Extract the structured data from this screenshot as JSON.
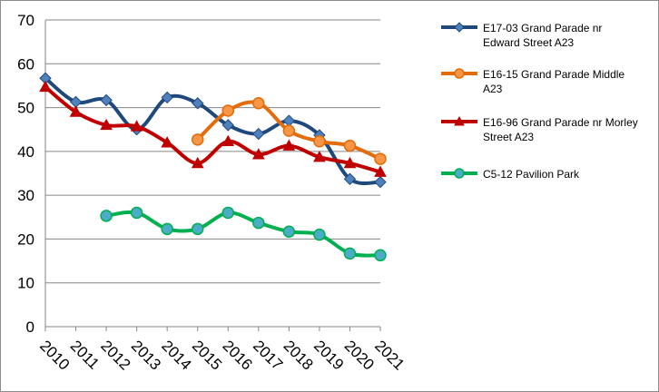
{
  "chart_data": {
    "type": "line",
    "title": "",
    "xlabel": "",
    "ylabel": "",
    "categories": [
      "2010",
      "2011",
      "2012",
      "2013",
      "2014",
      "2015",
      "2016",
      "2017",
      "2018",
      "2019",
      "2020",
      "2021"
    ],
    "ylim": [
      0,
      70
    ],
    "yticks": [
      0,
      10,
      20,
      30,
      40,
      50,
      60,
      70
    ],
    "grid": "horizontal",
    "legend_position": "right",
    "series": [
      {
        "name": "E17-03 Grand Parade nr Edward Street A23",
        "name_lines": [
          "E17-03 Grand Parade nr",
          "Edward Street A23"
        ],
        "color": "#1f497d",
        "marker": "diamond",
        "values": [
          56.7,
          51.3,
          51.7,
          45.0,
          52.3,
          51.0,
          46.0,
          44.0,
          47.0,
          43.7,
          33.7,
          33.0
        ]
      },
      {
        "name": "E16-15 Grand Parade Middle A23",
        "name_lines": [
          "E16-15 Grand Parade Middle",
          "A23"
        ],
        "color": "#e46c0a",
        "marker": "circle",
        "values": [
          null,
          null,
          null,
          null,
          null,
          42.7,
          49.3,
          51.0,
          44.7,
          42.3,
          41.3,
          38.3
        ]
      },
      {
        "name": "E16-96 Grand Parade nr Morley Street A23",
        "name_lines": [
          "E16-96 Grand Parade nr Morley",
          "Street A23"
        ],
        "color": "#c00000",
        "marker": "triangle",
        "values": [
          54.7,
          49.0,
          46.0,
          45.7,
          42.0,
          37.3,
          42.3,
          39.3,
          41.3,
          38.7,
          37.3,
          35.3
        ]
      },
      {
        "name": "C5-12 Pavilion Park",
        "name_lines": [
          "C5-12 Pavilion Park"
        ],
        "color": "#00b050",
        "marker": "circle",
        "values": [
          null,
          null,
          25.3,
          26.0,
          22.3,
          22.3,
          26.0,
          23.7,
          21.7,
          21.0,
          16.7,
          16.3
        ]
      }
    ]
  }
}
